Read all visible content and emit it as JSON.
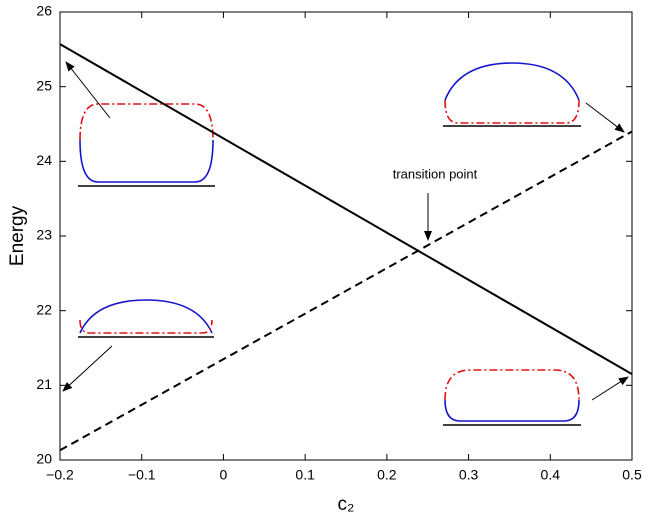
{
  "chart_data": {
    "type": "line",
    "ylabel": "Energy",
    "xlabel": "c₂",
    "annotations": [
      "transition point"
    ],
    "x": [
      -0.2,
      0.5
    ],
    "series": [
      {
        "color": "#000000",
        "dash": false,
        "values": [
          25.57,
          21.15
        ]
      },
      {
        "color": "#000000",
        "dash": true,
        "values": [
          20.13,
          24.4
        ]
      }
    ],
    "xlim": [
      -0.2,
      0.5
    ],
    "xticks": [
      {
        "value": -0.2,
        "label": "−0.2"
      },
      {
        "value": -0.1,
        "label": "−0.1"
      },
      0,
      0.1,
      0.2,
      0.3,
      0.4,
      0.5
    ],
    "ylim": [
      20,
      26
    ],
    "yticks": [
      20,
      21,
      22,
      23,
      24,
      25,
      26
    ],
    "grid": false
  }
}
